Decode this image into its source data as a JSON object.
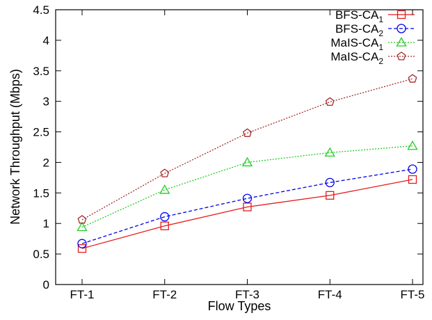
{
  "chart_data": {
    "type": "line",
    "title": "",
    "xlabel": "Flow Types",
    "ylabel": "Network Throughput (Mbps)",
    "categories": [
      "FT-1",
      "FT-2",
      "FT-3",
      "FT-4",
      "FT-5"
    ],
    "ylim": [
      0,
      4.5
    ],
    "yticks": [
      "0",
      "0.5",
      "1",
      "1.5",
      "2",
      "2.5",
      "3",
      "3.5",
      "4",
      "4.5"
    ],
    "grid": false,
    "legend_position": "top-right",
    "series": [
      {
        "name": "BFS-CA",
        "subscript": "1",
        "color": "#e41a1c",
        "dash": "solid",
        "marker": "square",
        "values": [
          0.59,
          0.96,
          1.27,
          1.46,
          1.72
        ]
      },
      {
        "name": "BFS-CA",
        "subscript": "2",
        "color": "#0000ee",
        "dash": "dashed",
        "marker": "circle",
        "values": [
          0.67,
          1.11,
          1.41,
          1.67,
          1.89
        ]
      },
      {
        "name": "MaIS-CA",
        "subscript": "1",
        "color": "#22cc22",
        "dash": "dotted",
        "marker": "triangle",
        "values": [
          0.94,
          1.55,
          2.0,
          2.16,
          2.27
        ]
      },
      {
        "name": "MaIS-CA",
        "subscript": "2",
        "color": "#a52a2a",
        "dash": "dotted",
        "marker": "pentagon",
        "values": [
          1.06,
          1.82,
          2.48,
          2.99,
          3.37
        ]
      }
    ]
  }
}
